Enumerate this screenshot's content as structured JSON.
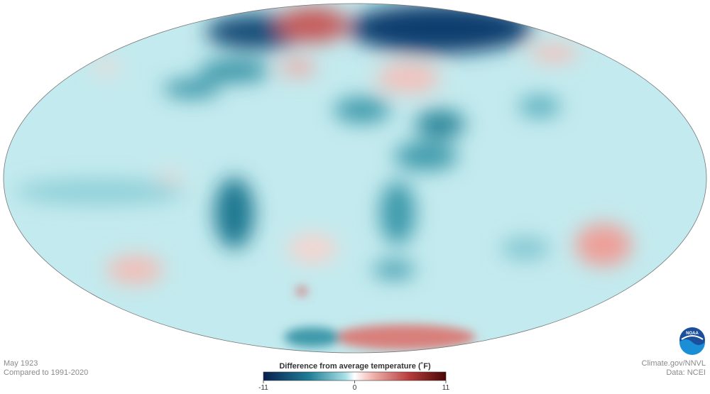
{
  "map": {
    "date": "May 1923",
    "baseline": "Compared to 1991-2020"
  },
  "legend": {
    "title": "Difference from average temperature (˚F)",
    "min": -11,
    "max": 11,
    "ticks": [
      -11,
      0,
      11
    ]
  },
  "credits": {
    "source": "Climate.gov/NNVL",
    "data": "Data: NCEI",
    "logo": "NOAA"
  }
}
